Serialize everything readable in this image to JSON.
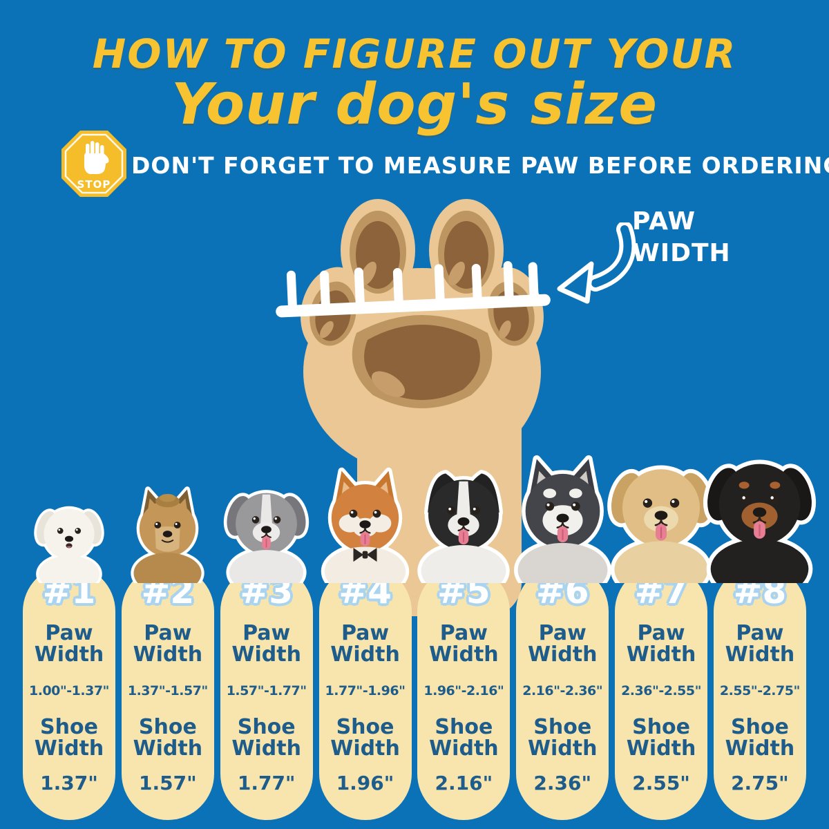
{
  "page": {
    "background_color": "#0C72B7",
    "accent_yellow": "#F8C330",
    "pill_cream": "#F8E5AE",
    "text_blue": "#1E5C8B",
    "number_halo_blue": "#A9D3EF"
  },
  "header": {
    "title_line1": "HOW TO FIGURE OUT YOUR",
    "title_line2": "Your dog's size",
    "stop_sign_label": "STOP",
    "subtitle": "DON'T FORGET TO MEASURE PAW BEFORE ORDERING"
  },
  "paw_diagram": {
    "label_line1": "PAW",
    "label_line2": "WIDTH",
    "paw_colors": {
      "base": "#EAC794",
      "ring": "#BD9560",
      "pad": "#8C633A",
      "highlight": "#C79E6B"
    }
  },
  "size_chart": {
    "paw_label": [
      "Paw",
      "Width"
    ],
    "shoe_label": [
      "Shoe",
      "Width"
    ],
    "columns": [
      {
        "number": "#1",
        "paw_width": "1.00\"-1.37\"",
        "shoe_width": "1.37\"",
        "dog_breed": "bichon-frise",
        "dog_fur": "#F6F3EC"
      },
      {
        "number": "#2",
        "paw_width": "1.37\"-1.57\"",
        "shoe_width": "1.57\"",
        "dog_breed": "yorkshire-terrier",
        "dog_fur": "#C49759"
      },
      {
        "number": "#3",
        "paw_width": "1.57\"-1.77\"",
        "shoe_width": "1.77\"",
        "dog_breed": "bearded-collie",
        "dog_fur": "#99989B"
      },
      {
        "number": "#4",
        "paw_width": "1.77\"-1.96\"",
        "shoe_width": "1.96\"",
        "dog_breed": "shiba-inu",
        "dog_fur": "#D2823E"
      },
      {
        "number": "#5",
        "paw_width": "1.96\"-2.16\"",
        "shoe_width": "2.16\"",
        "dog_breed": "border-collie",
        "dog_fur": "#2A2A2A"
      },
      {
        "number": "#6",
        "paw_width": "2.16\"-2.36\"",
        "shoe_width": "2.36\"",
        "dog_breed": "husky",
        "dog_fur": "#44454A"
      },
      {
        "number": "#7",
        "paw_width": "2.36\"-2.55\"",
        "shoe_width": "2.55\"",
        "dog_breed": "golden-retriever",
        "dog_fur": "#E0BE85"
      },
      {
        "number": "#8",
        "paw_width": "2.55\"-2.75\"",
        "shoe_width": "2.75\"",
        "dog_breed": "rottweiler",
        "dog_fur": "#232120"
      }
    ]
  }
}
